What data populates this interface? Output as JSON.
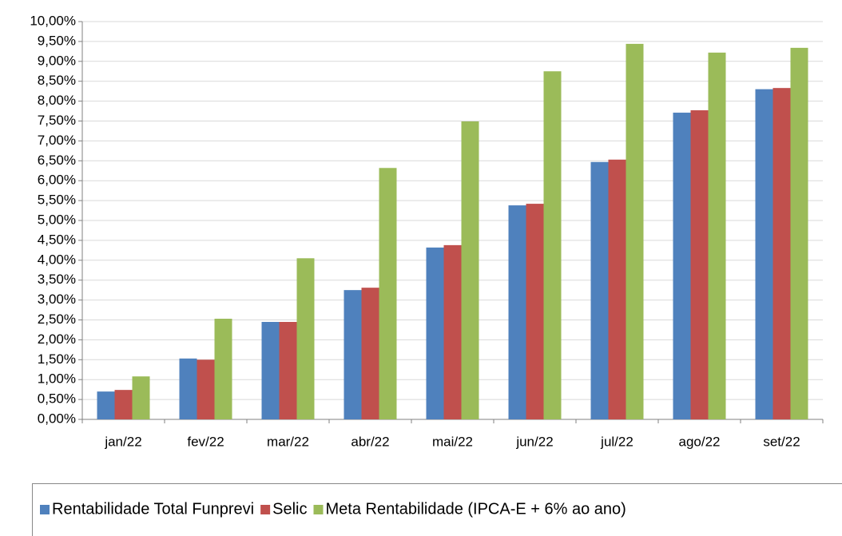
{
  "chart_data": {
    "type": "bar",
    "categories": [
      "jan/22",
      "fev/22",
      "mar/22",
      "abr/22",
      "mai/22",
      "jun/22",
      "jul/22",
      "ago/22",
      "set/22"
    ],
    "series": [
      {
        "name": "Rentabilidade Total Funprevi",
        "color": "#4f81bd",
        "values": [
          0.7,
          1.53,
          2.45,
          3.25,
          4.32,
          5.38,
          6.47,
          7.71,
          8.3
        ]
      },
      {
        "name": "Selic",
        "color": "#c0504d",
        "values": [
          0.74,
          1.5,
          2.45,
          3.31,
          4.38,
          5.42,
          6.53,
          7.77,
          8.33
        ]
      },
      {
        "name": "Meta Rentabilidade (IPCA-E + 6% ao ano)",
        "color": "#9bbb59",
        "values": [
          1.08,
          2.53,
          4.05,
          6.32,
          7.49,
          8.75,
          9.44,
          9.22,
          9.34
        ]
      }
    ],
    "ylim": [
      0,
      10
    ],
    "yticks": [
      {
        "value": 0,
        "label": "0,00%"
      },
      {
        "value": 0.5,
        "label": "0,50%"
      },
      {
        "value": 1,
        "label": "1,00%"
      },
      {
        "value": 1.5,
        "label": "1,50%"
      },
      {
        "value": 2,
        "label": "2,00%"
      },
      {
        "value": 2.5,
        "label": "2,50%"
      },
      {
        "value": 3,
        "label": "3,00%"
      },
      {
        "value": 3.5,
        "label": "3,50%"
      },
      {
        "value": 4,
        "label": "4,00%"
      },
      {
        "value": 4.5,
        "label": "4,50%"
      },
      {
        "value": 5,
        "label": "5,00%"
      },
      {
        "value": 5.5,
        "label": "5,50%"
      },
      {
        "value": 6,
        "label": "6,00%"
      },
      {
        "value": 6.5,
        "label": "6,50%"
      },
      {
        "value": 7,
        "label": "7,00%"
      },
      {
        "value": 7.5,
        "label": "7,50%"
      },
      {
        "value": 8,
        "label": "8,00%"
      },
      {
        "value": 8.5,
        "label": "8,50%"
      },
      {
        "value": 9,
        "label": "9,00%"
      },
      {
        "value": 9.5,
        "label": "9,50%"
      },
      {
        "value": 10,
        "label": "10,00%"
      }
    ],
    "grid": true,
    "legend": "bottom"
  }
}
